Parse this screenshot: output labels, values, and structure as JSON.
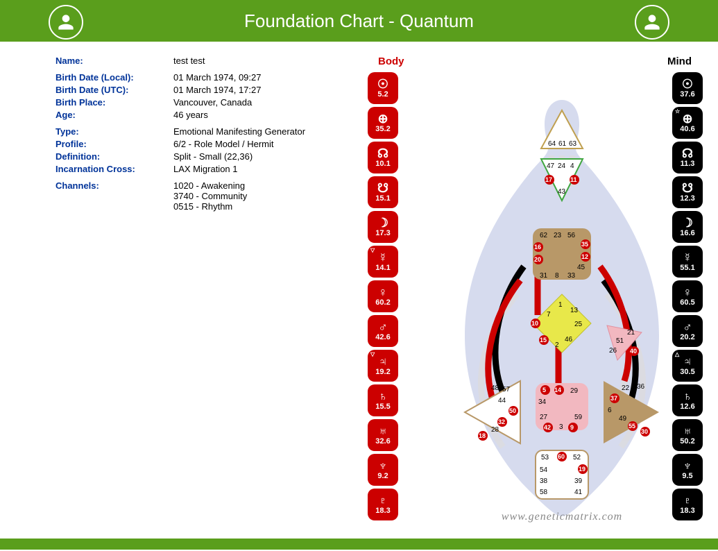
{
  "header": {
    "title": "Foundation Chart - Quantum"
  },
  "info": {
    "name_label": "Name:",
    "name": "test test",
    "birth_local_label": "Birth Date (Local):",
    "birth_local": "01 March 1974, 09:27",
    "birth_utc_label": "Birth Date (UTC):",
    "birth_utc": "01 March 1974, 17:27",
    "birth_place_label": "Birth Place:",
    "birth_place": "Vancouver, Canada",
    "age_label": "Age:",
    "age": "46 years",
    "type_label": "Type:",
    "type": "Emotional Manifesting Generator",
    "profile_label": "Profile:",
    "profile": "6/2 - Role Model / Hermit",
    "definition_label": "Definition:",
    "definition": "Split - Small (22,36)",
    "cross_label": "Incarnation Cross:",
    "cross": "LAX Migration 1",
    "channels_label": "Channels:",
    "channel1": "1020 - Awakening",
    "channel2": "3740 - Community",
    "channel3": "0515 - Rhythm"
  },
  "columns": {
    "body": "Body",
    "mind": "Mind"
  },
  "colors": {
    "header_bg": "#5a9e1c",
    "body_red": "#cc0000",
    "mind_black": "#000000",
    "silhouette": "#b4bde0",
    "head_fill": "#ffffff",
    "head_stroke": "#c0a050",
    "ajna_fill": "#ffffff",
    "ajna_stroke": "#3fa63f",
    "throat_fill": "#b89868",
    "g_fill": "#e8e84a",
    "sacral_fill": "#f2b8c0",
    "root_fill": "#ffffff",
    "root_stroke": "#b89868",
    "spleen_fill": "#ffffff",
    "spleen_stroke": "#b89868",
    "solar_fill": "#b89868",
    "heart_fill": "#f2b8c0",
    "channel_red": "#cc0000",
    "channel_black": "#000000",
    "channel_open": "#d8d8dc"
  },
  "planets": {
    "body": [
      {
        "g": "☉",
        "v": "5.2"
      },
      {
        "g": "⊕",
        "v": "35.2"
      },
      {
        "g": "☊",
        "v": "10.1"
      },
      {
        "g": "☋",
        "v": "15.1"
      },
      {
        "g": "☽",
        "v": "17.3"
      },
      {
        "g": "☿",
        "v": "14.1",
        "sup": "▽"
      },
      {
        "g": "♀",
        "v": "60.2"
      },
      {
        "g": "♂",
        "v": "42.6"
      },
      {
        "g": "♃",
        "v": "19.2",
        "sup": "▽"
      },
      {
        "g": "♄",
        "v": "15.5"
      },
      {
        "g": "♅",
        "v": "32.6"
      },
      {
        "g": "♆",
        "v": "9.2"
      },
      {
        "g": "♇",
        "v": "18.3"
      }
    ],
    "mind": [
      {
        "g": "☉",
        "v": "37.6"
      },
      {
        "g": "⊕",
        "v": "40.6",
        "sup": "☆"
      },
      {
        "g": "☊",
        "v": "11.3"
      },
      {
        "g": "☋",
        "v": "12.3"
      },
      {
        "g": "☽",
        "v": "16.6"
      },
      {
        "g": "☿",
        "v": "55.1"
      },
      {
        "g": "♀",
        "v": "60.5"
      },
      {
        "g": "♂",
        "v": "20.2"
      },
      {
        "g": "♃",
        "v": "30.5",
        "sup": "△"
      },
      {
        "g": "♄",
        "v": "12.6"
      },
      {
        "g": "♅",
        "v": "50.2"
      },
      {
        "g": "♆",
        "v": "9.5"
      },
      {
        "g": "♇",
        "v": "18.3"
      }
    ]
  },
  "bodygraph": {
    "watermark": "www.geneticmatrix.com",
    "centers": {
      "head": {
        "fill": "#ffffff",
        "stroke": "#c0a050",
        "gates": [
          "64",
          "61",
          "63"
        ]
      },
      "ajna": {
        "fill": "#ffffff",
        "stroke": "#3fa63f",
        "gates_top": [
          "47",
          "24",
          "4"
        ],
        "gates_bot": [
          "17",
          "11"
        ],
        "gate_43": "43"
      },
      "throat": {
        "fill": "#b89868",
        "gates_top": [
          "62",
          "23",
          "56"
        ],
        "gates_side_l": [
          "16",
          "20"
        ],
        "gates_side_r": [
          "35",
          "12"
        ],
        "gate_45": "45",
        "gates_bot": [
          "31",
          "8",
          "33"
        ]
      },
      "g": {
        "fill": "#e8e84a",
        "gates": [
          "1",
          "13",
          "7",
          "25",
          "10",
          "15",
          "2",
          "46"
        ]
      },
      "heart": {
        "fill": "#f2b8c0",
        "gates": [
          "21",
          "51",
          "26",
          "40"
        ]
      },
      "sacral": {
        "fill": "#f2b8c0",
        "gates_top": [
          "5",
          "14",
          "29"
        ],
        "gate_34": "34",
        "gates_bot": [
          "27",
          "59"
        ],
        "gates_bot2": [
          "42",
          "3",
          "9"
        ]
      },
      "spleen": {
        "fill": "#ffffff",
        "stroke": "#b89868",
        "gates": [
          "48",
          "57",
          "44",
          "50",
          "32",
          "28",
          "18"
        ]
      },
      "solar": {
        "fill": "#b89868",
        "gates": [
          "36",
          "22",
          "37",
          "6",
          "49",
          "55",
          "30"
        ]
      },
      "root": {
        "fill": "#ffffff",
        "stroke": "#b89868",
        "gates_top": [
          "53",
          "60",
          "52"
        ],
        "gates_l": [
          "54",
          "38",
          "58"
        ],
        "gates_r": [
          "19",
          "39",
          "41"
        ]
      }
    },
    "defined_gates_red": [
      "17",
      "10",
      "15",
      "5",
      "14",
      "42",
      "9",
      "60",
      "35",
      "18",
      "32",
      "50",
      "19"
    ],
    "defined_gates_black": [
      "11",
      "12",
      "16",
      "20",
      "37",
      "40",
      "55",
      "30",
      "60",
      "9",
      "50",
      "18"
    ],
    "channels": [
      {
        "from": "20",
        "to": "10",
        "color": "#cc0000"
      },
      {
        "from": "37",
        "to": "40",
        "color": "#000000"
      },
      {
        "from": "5",
        "to": "15",
        "color": "#cc0000"
      }
    ]
  }
}
